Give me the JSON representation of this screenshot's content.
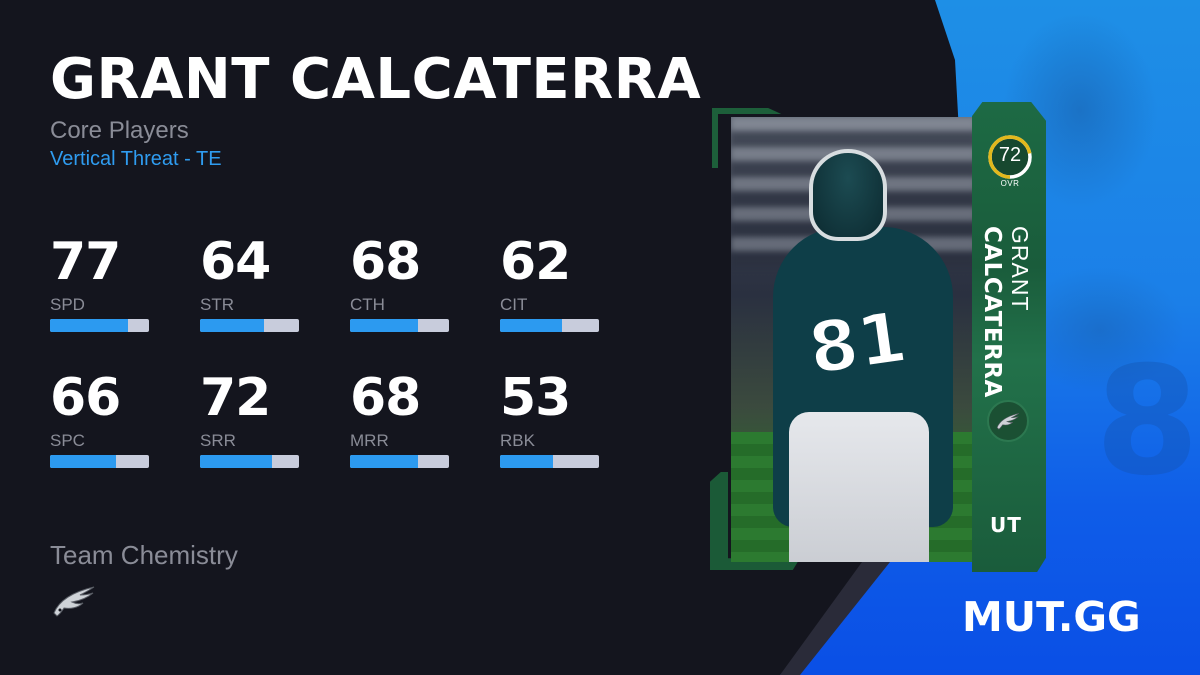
{
  "player": {
    "name": "GRANT CALCATERRA",
    "first_name": "GRANT",
    "last_name": "CALCATERRA",
    "program": "Core Players",
    "archetype": "Vertical Threat - TE"
  },
  "stats": [
    {
      "label": "SPD",
      "value": "77",
      "fill_pct": 79
    },
    {
      "label": "STR",
      "value": "64",
      "fill_pct": 65
    },
    {
      "label": "CTH",
      "value": "68",
      "fill_pct": 69
    },
    {
      "label": "CIT",
      "value": "62",
      "fill_pct": 63
    },
    {
      "label": "SPC",
      "value": "66",
      "fill_pct": 67
    },
    {
      "label": "SRR",
      "value": "72",
      "fill_pct": 73
    },
    {
      "label": "MRR",
      "value": "68",
      "fill_pct": 69
    },
    {
      "label": "RBK",
      "value": "53",
      "fill_pct": 54
    }
  ],
  "chemistry": {
    "label": "Team Chemistry",
    "team_icon": "eagles-logo-icon"
  },
  "card": {
    "ovr": "72",
    "ovr_label": "OVR",
    "ovr_pct": 72,
    "jersey_number": "81",
    "mode": "UT",
    "team_icon": "eagles-logo-icon"
  },
  "brand": {
    "name": "MUT.GG"
  },
  "colors": {
    "background": "#14151e",
    "accent_blue": "#2c9af0",
    "bar_track": "#c8ccdc",
    "card_green": "#1d6a44",
    "ovr_ring": "#e2b81c",
    "brand_blue": "#0f5de8"
  }
}
